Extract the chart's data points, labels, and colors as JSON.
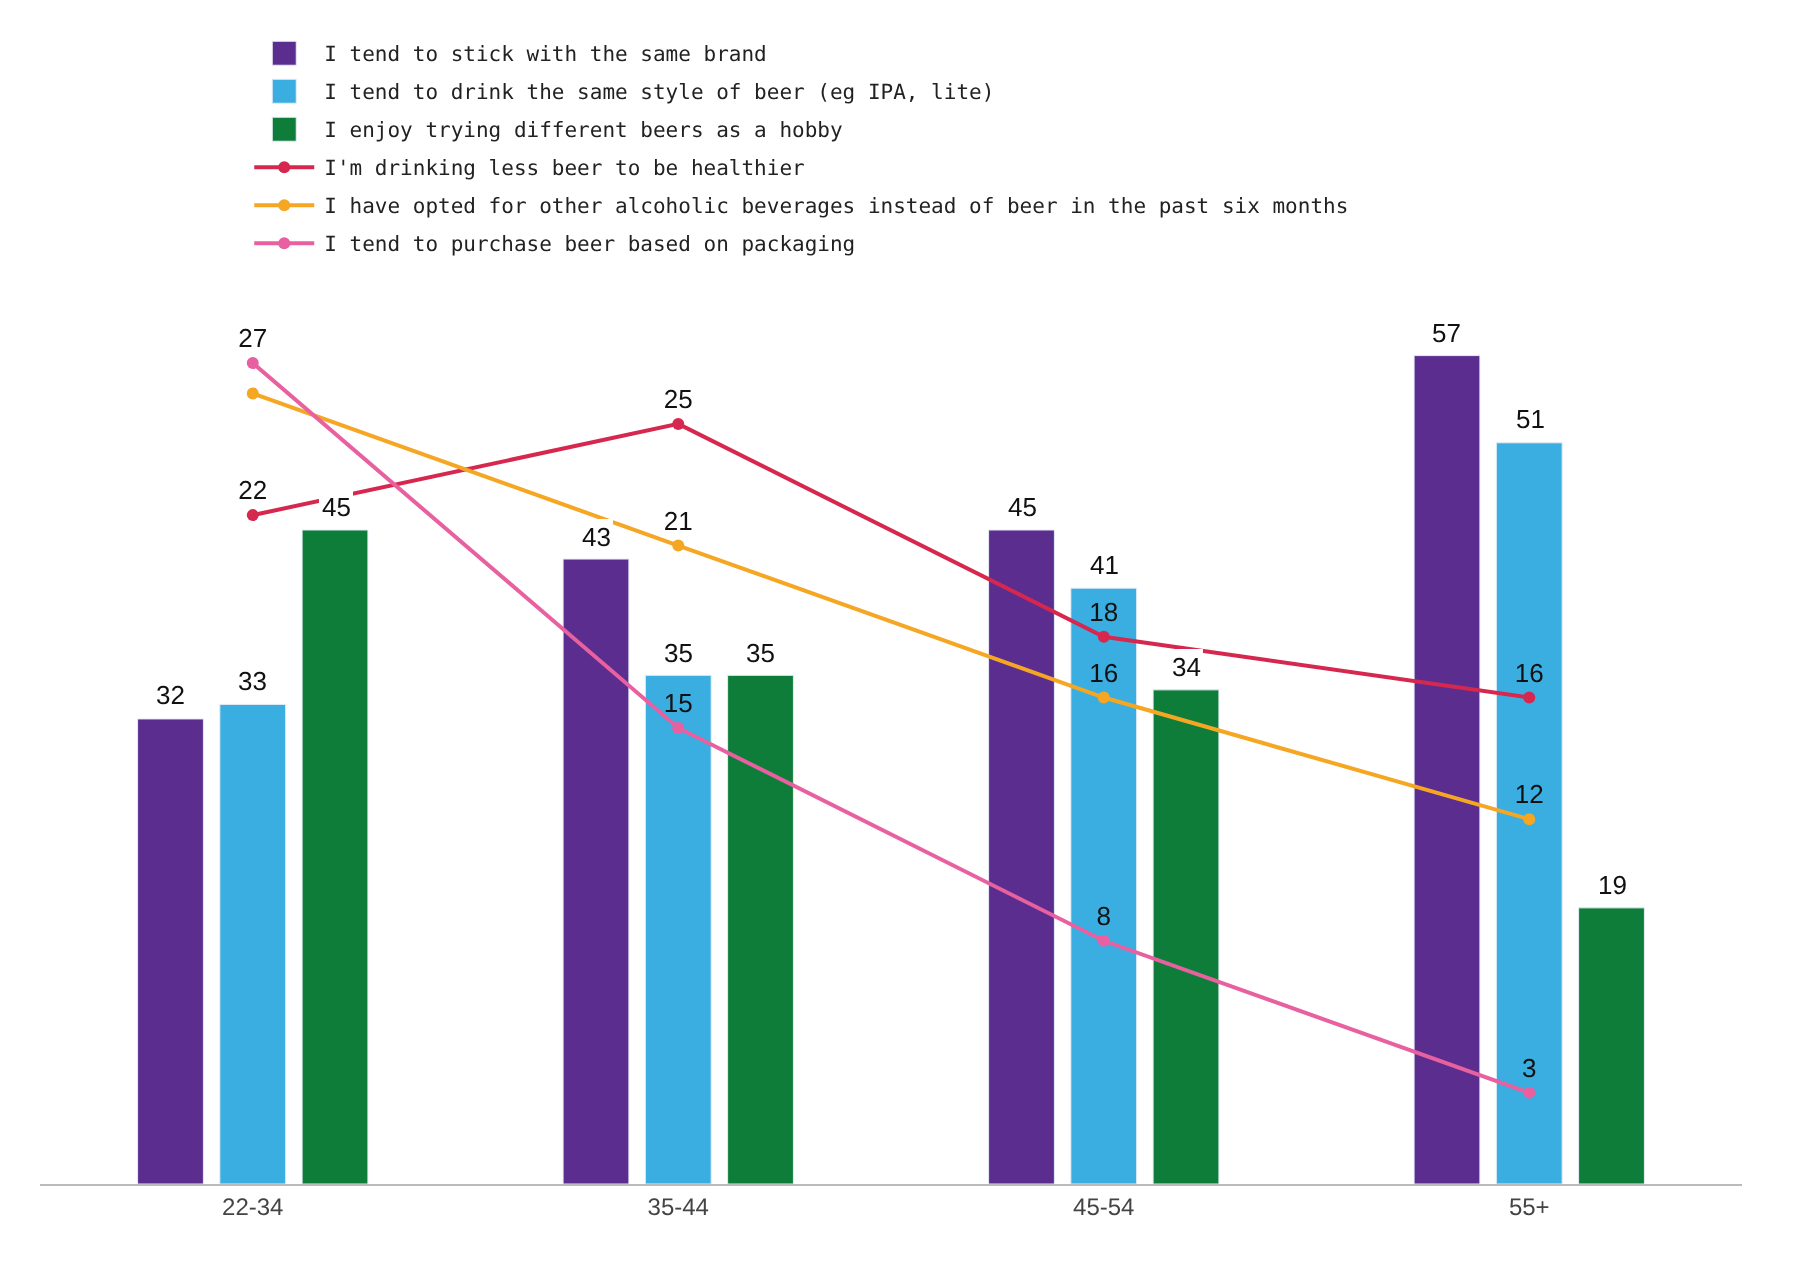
{
  "chart_data": {
    "type": "bar",
    "categories": [
      "22-34",
      "35-44",
      "45-54",
      "55+"
    ],
    "series": [
      {
        "name": "I tend to stick with the same brand",
        "color": "#5b2d8e",
        "values": [
          32,
          43,
          45,
          57
        ]
      },
      {
        "name": "I tend to drink the same style of beer (eg IPA, lite)",
        "color": "#3aaee0",
        "values": [
          33,
          35,
          41,
          51
        ]
      },
      {
        "name": "I enjoy trying different beers as a hobby",
        "color": "#0e7d3a",
        "values": [
          45,
          35,
          34,
          19
        ]
      },
      {
        "name": "I'm drinking less beer to be healthier",
        "color": "#d6284f",
        "type": "line",
        "axis": "y2",
        "marker": "circle",
        "values": [
          22,
          25,
          18,
          16
        ]
      },
      {
        "name": "I have opted for other alcoholic beverages instead of beer in the past six months",
        "color": "#f5a623",
        "type": "line",
        "axis": "y2",
        "marker": "circle",
        "values": [
          26,
          21,
          16,
          12
        ],
        "value_labels": [
          null,
          "21",
          "16",
          "12"
        ]
      },
      {
        "name": "I tend to purchase beer based on packaging",
        "color": "#e8609f",
        "type": "line",
        "axis": "y2",
        "marker": "circle",
        "values": [
          27,
          15,
          8,
          3
        ]
      }
    ],
    "tick_labels": "x",
    "legend": "top",
    "data_labels": true
  }
}
